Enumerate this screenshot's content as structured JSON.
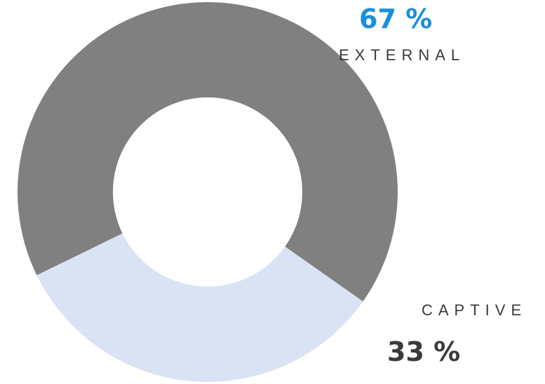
{
  "chart_data": {
    "type": "pie",
    "donut": true,
    "start_angle_deg": 244,
    "slices": [
      {
        "label": "EXTERNAL",
        "value": 67,
        "value_label": "67 %",
        "color": "#808080",
        "label_color": "#1b8fd9"
      },
      {
        "label": "CAPTIVE",
        "value": 33,
        "value_label": "33 %",
        "color": "#dae3f3",
        "label_color": "#3a3a3a"
      }
    ]
  }
}
